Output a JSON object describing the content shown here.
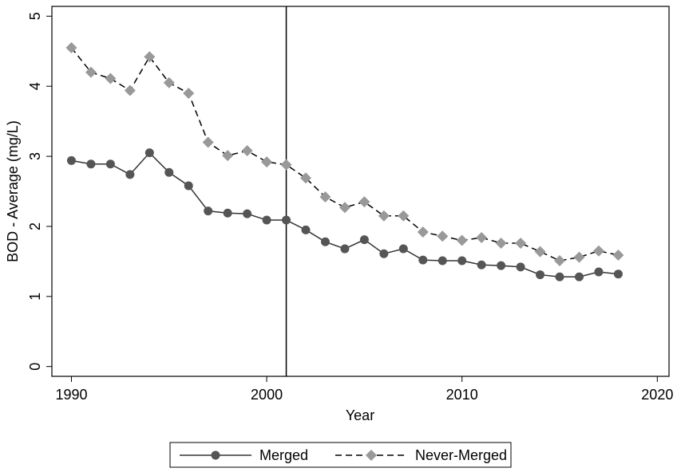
{
  "chart_data": {
    "type": "line",
    "x_label": "Year",
    "y_label": "BOD - Average (mg/L)",
    "x": [
      1990,
      1991,
      1992,
      1993,
      1994,
      1995,
      1996,
      1997,
      1998,
      1999,
      2000,
      2001,
      2002,
      2003,
      2004,
      2005,
      2006,
      2007,
      2008,
      2009,
      2010,
      2011,
      2012,
      2013,
      2014,
      2015,
      2016,
      2017,
      2018
    ],
    "series": [
      {
        "name": "Merged",
        "color": "#555555",
        "line_color": "#333333",
        "line_style": "solid",
        "marker": "circle",
        "values": [
          2.94,
          2.89,
          2.89,
          2.74,
          3.05,
          2.77,
          2.58,
          2.22,
          2.19,
          2.18,
          2.09,
          2.09,
          1.95,
          1.78,
          1.68,
          1.81,
          1.61,
          1.68,
          1.52,
          1.51,
          1.51,
          1.45,
          1.44,
          1.42,
          1.31,
          1.28,
          1.28,
          1.35,
          1.32
        ]
      },
      {
        "name": "Never-Merged",
        "color": "#999999",
        "line_color": "#000000",
        "line_style": "dashed",
        "marker": "diamond",
        "values": [
          4.55,
          4.2,
          4.11,
          3.94,
          4.42,
          4.05,
          3.9,
          3.2,
          3.01,
          3.08,
          2.92,
          2.88,
          2.69,
          2.42,
          2.27,
          2.35,
          2.15,
          2.15,
          1.92,
          1.86,
          1.8,
          1.84,
          1.76,
          1.76,
          1.64,
          1.51,
          1.56,
          1.65,
          1.59
        ]
      }
    ],
    "xlim": [
      1989,
      2020.6
    ],
    "ylim": [
      -0.14,
      5.14
    ],
    "xticks": [
      1990,
      2000,
      2010,
      2020
    ],
    "yticks": [
      0,
      1,
      2,
      3,
      4,
      5
    ],
    "vline": 2001,
    "legend": "bottom"
  }
}
